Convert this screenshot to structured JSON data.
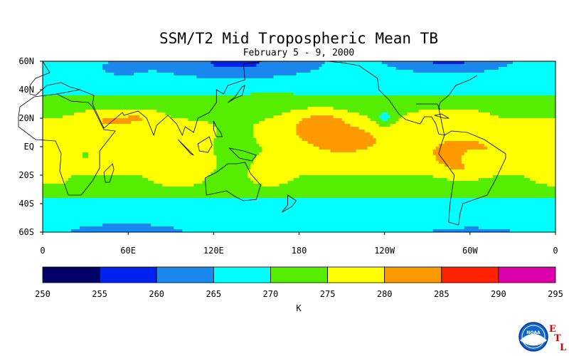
{
  "chart_data": {
    "type": "heatmap",
    "title": "SSM/T2 Mid Tropospheric Mean TB",
    "subtitle": "February 5 - 9, 2000",
    "x_ticks": [
      "0",
      "60E",
      "120E",
      "180",
      "120W",
      "60W",
      "0"
    ],
    "y_ticks": [
      "60N",
      "40N",
      "20N",
      "EQ",
      "20S",
      "40S",
      "60S"
    ],
    "xlim": [
      0,
      360
    ],
    "ylim": [
      -60,
      60
    ],
    "colorbar": {
      "label": "K",
      "boundaries": [
        "250",
        "255",
        "260",
        "265",
        "270",
        "275",
        "280",
        "285",
        "290",
        "295"
      ],
      "colors": [
        "#000066",
        "#0022ee",
        "#1a88ee",
        "#00ffff",
        "#55ee00",
        "#ffff00",
        "#ff9900",
        "#ff2200",
        "#dd00aa"
      ]
    },
    "contour_levels": [
      255,
      260,
      265,
      270,
      275,
      280,
      285
    ],
    "grid": false
  },
  "logo": {
    "letters": [
      "E",
      "T",
      "L"
    ],
    "seal_text": "NOAA"
  }
}
